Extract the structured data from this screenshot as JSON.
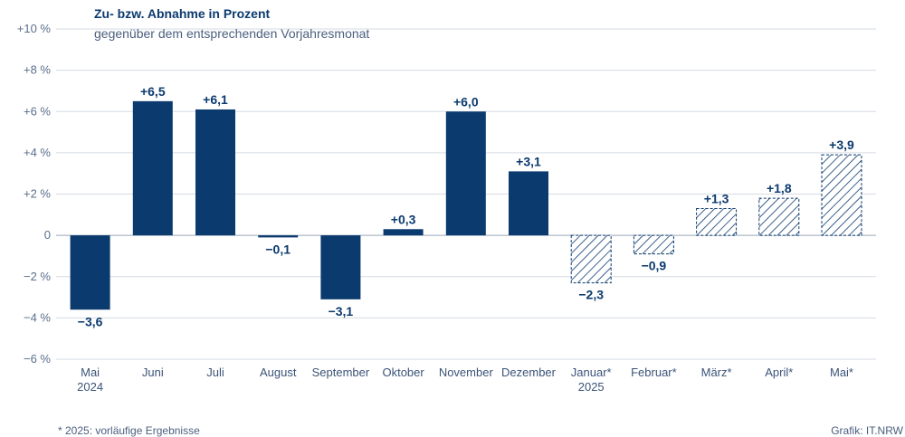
{
  "chart_data": {
    "type": "bar",
    "title": "Zu- bzw. Abnahme in Prozent",
    "subtitle": "gegenüber dem entsprechenden Vorjahresmonat",
    "categories": [
      [
        "Mai",
        "2024"
      ],
      [
        "Juni"
      ],
      [
        "Juli"
      ],
      [
        "August"
      ],
      [
        "September"
      ],
      [
        "Oktober"
      ],
      [
        "November"
      ],
      [
        "Dezember"
      ],
      [
        "Januar*",
        "2025"
      ],
      [
        "Februar*"
      ],
      [
        "März*"
      ],
      [
        "April*"
      ],
      [
        "Mai*"
      ]
    ],
    "values": [
      -3.6,
      6.5,
      6.1,
      -0.1,
      -3.1,
      0.3,
      6.0,
      3.1,
      -2.3,
      -0.9,
      1.3,
      1.8,
      3.9
    ],
    "value_labels": [
      "−3,6",
      "+6,5",
      "+6,1",
      "−0,1",
      "−3,1",
      "+0,3",
      "+6,0",
      "+3,1",
      "−2,3",
      "−0,9",
      "+1,3",
      "+1,8",
      "+3,9"
    ],
    "provisional": [
      false,
      false,
      false,
      false,
      false,
      false,
      false,
      false,
      true,
      true,
      true,
      true,
      true
    ],
    "ylim": [
      -6,
      10
    ],
    "yticks": [
      -6,
      -4,
      -2,
      0,
      2,
      4,
      6,
      8,
      10
    ],
    "ytick_labels": [
      "−6 %",
      "−4 %",
      "−2 %",
      "0",
      "+2 %",
      "+4 %",
      "+6 %",
      "+8 %",
      "+10 %"
    ],
    "grid": true,
    "colors": {
      "bar": "#0b3a6e",
      "hatch": "#0b3a6e",
      "grid": "#d5dbe3"
    }
  },
  "footnote": "* 2025: vorläufige Ergebnisse",
  "source": "Grafik: IT.NRW"
}
